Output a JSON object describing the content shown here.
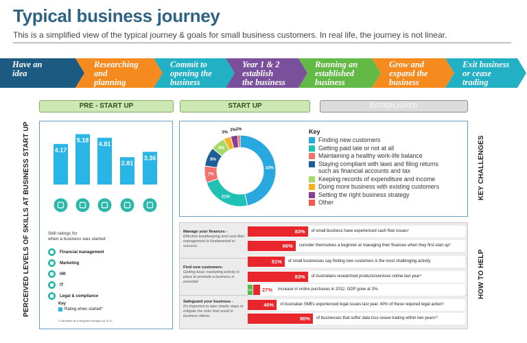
{
  "page": {
    "title": "Typical business journey",
    "subtitle": "This is a simplified view of the typical journey & goals for small business customers. In real life, the journey is not linear."
  },
  "journey": {
    "steps": [
      {
        "label": "Have an\nidea",
        "color": "#1d5a82"
      },
      {
        "label": "Researching\nand\nplanning",
        "color": "#f58a1f"
      },
      {
        "label": "Commit to\nopening the\nbusiness",
        "color": "#21b0c4"
      },
      {
        "label": "Year 1 & 2\nestablish\nthe business",
        "color": "#7a4f9c"
      },
      {
        "label": "Running an\nestablished\nbusiness",
        "color": "#63b946"
      },
      {
        "label": "Grow and\nexpand the\nbusiness",
        "color": "#f58a1f"
      },
      {
        "label": "Exit business\nor cease\ntrading",
        "color": "#21b0c4"
      }
    ]
  },
  "phases": {
    "pre_start_up": "PRE - START UP",
    "start_up": "START UP",
    "established": "ESTABLISHED"
  },
  "side_labels": {
    "left": "PERCEIVED LEVELS OF SKILLS AT BUSINESS START UP",
    "key_challenges": "KEY CHALLENGES",
    "how_to_help": "HOW TO HELP"
  },
  "skills": {
    "title": "Skill ratings for\nwhen a business was started",
    "items": [
      "Financial management",
      "Marketing",
      "HR",
      "IT",
      "Legal & compliance"
    ],
    "key_title": "Key",
    "key_item": "Rating when started*",
    "footnote": "*Calculated as a weighted average out of 10"
  },
  "challenges": {
    "key_title": "Key",
    "legend": [
      {
        "label": "Finding new customers",
        "color": "#29a8e0"
      },
      {
        "label": "Getting paid late or not at all",
        "color": "#21c0b4"
      },
      {
        "label": "Maintaining a healthy work-life balance",
        "color": "#f2726f"
      },
      {
        "label": "Staying compliant with laws and filing returns\nsuch as financial accounts and tax",
        "color": "#1d5f96"
      },
      {
        "label": "Keeping records of expenditure and income",
        "color": "#a6d96a"
      },
      {
        "label": "Doing more business with existing customers",
        "color": "#f5b324"
      },
      {
        "label": "Setting the right business strategy",
        "color": "#8a3f96"
      },
      {
        "label": "Other",
        "color": "#f05a4a"
      }
    ]
  },
  "help": {
    "groups": [
      {
        "title": "Manage your finances -",
        "desc": "Effective bookkeeping and cash-flow management is fundamental to success."
      },
      {
        "title": "Find new customers-",
        "desc": "Getting basic marketing activity in place to promote a business is essential"
      },
      {
        "title": "Safeguard your business -",
        "desc": "It's important to take simple steps to mitigate the risks that result in business failure."
      }
    ],
    "stats": [
      {
        "pct": "83%",
        "value": 83,
        "text": "of small business have experienced cash flow issues¹"
      },
      {
        "pct": "66%",
        "value": 66,
        "text": "consider themselves a beginner at managing their finances when they first start up²"
      },
      {
        "pct": "51%",
        "value": 51,
        "text": "of small businesses say finding new customers is the most challenging activity"
      },
      {
        "pct": "83%",
        "value": 83,
        "text": "of Australians researched products/services online last year⁴"
      },
      {
        "pct": "27%",
        "value": 27,
        "small_pct": "3%",
        "text": "increase in online purchases in 2012. GDP grew at 3%."
      },
      {
        "pct": "40%",
        "value": 40,
        "text": "of Australian SMEs experienced legal issues last year. 40% of these required legal action⁶."
      },
      {
        "pct": "90%",
        "value": 90,
        "text": "of businesses that suffer data loss cease trading within two years¹⁰"
      }
    ]
  },
  "chart_data": [
    {
      "type": "bar",
      "title": "Skill ratings for when a business was started",
      "categories": [
        "Financial management",
        "Marketing",
        "HR",
        "IT",
        "Legal & compliance"
      ],
      "values": [
        4.17,
        5.18,
        4.81,
        2.81,
        3.36
      ],
      "value_labels": [
        "4.17",
        "5.18",
        "4.81",
        "2.81",
        "3.36"
      ],
      "ylim": [
        0,
        5.5
      ],
      "color": "#29b5e6",
      "xlabel": "",
      "ylabel": ""
    },
    {
      "type": "pie",
      "title": "Key challenges",
      "categories": [
        "Finding new customers",
        "Getting paid late or not at all",
        "Maintaining a healthy work-life balance",
        "Staying compliant with laws and filing returns such as financial accounts and tax",
        "Keeping records of expenditure and income",
        "Doing more business with existing customers",
        "Setting the right business strategy",
        "Other"
      ],
      "values": [
        43,
        21,
        7,
        8,
        6,
        3,
        3,
        1
      ],
      "value_labels": [
        "43%",
        "21%",
        "7%",
        "8%",
        "6%",
        "3%",
        "3%",
        "1%"
      ],
      "colors": [
        "#29a8e0",
        "#21c0b4",
        "#f2726f",
        "#1d5f96",
        "#a6d96a",
        "#f5b324",
        "#8a3f96",
        "#f05a4a"
      ]
    }
  ]
}
